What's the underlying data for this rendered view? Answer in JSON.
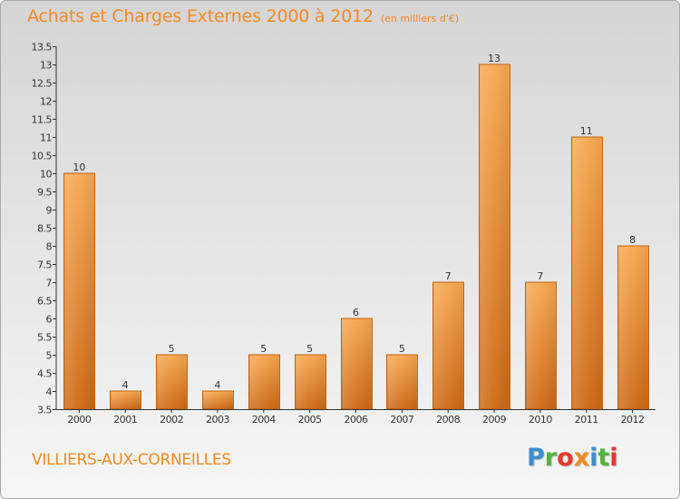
{
  "header": {
    "title": "Achats et Charges Externes 2000 à 2012",
    "unit": "(en milliers d'€)"
  },
  "commune": "VILLIERS-AUX-CORNEILLES",
  "logo": {
    "letters": [
      {
        "char": "P",
        "color": "#3a8fd0"
      },
      {
        "char": "r",
        "color": "#55b13f"
      },
      {
        "char": "o",
        "color": "#e23c2b"
      },
      {
        "char": "x",
        "color": "#f08a23"
      },
      {
        "char": "i",
        "color": "#3a8fd0"
      },
      {
        "char": "t",
        "color": "#55b13f"
      },
      {
        "char": "i",
        "color": "#e23c2b"
      }
    ]
  },
  "colors": {
    "accent": "#f08a23",
    "bar_top": "#f8a851",
    "bar_bottom": "#cc6914",
    "bar_edge": "#c06414"
  },
  "chart_data": {
    "type": "bar",
    "title": "Achats et Charges Externes 2000 à 2012",
    "subtitle": "(en milliers d'€)",
    "categories": [
      "2000",
      "2001",
      "2002",
      "2003",
      "2004",
      "2005",
      "2006",
      "2007",
      "2008",
      "2009",
      "2010",
      "2011",
      "2012"
    ],
    "values": [
      10,
      4,
      5,
      4,
      5,
      5,
      6,
      5,
      7,
      13,
      7,
      11,
      8
    ],
    "data_labels": [
      "10",
      "4",
      "5",
      "4",
      "5",
      "5",
      "6",
      "5",
      "7",
      "13",
      "7",
      "11",
      "8"
    ],
    "ylim": [
      3.5,
      13.5
    ],
    "yticks": [
      3.5,
      4,
      4.5,
      5,
      5.5,
      6,
      6.5,
      7,
      7.5,
      8,
      8.5,
      9,
      9.5,
      10,
      10.5,
      11,
      11.5,
      12,
      12.5,
      13,
      13.5
    ],
    "yticklabels": [
      "3.5",
      "4",
      "4.5",
      "5",
      "5.5",
      "6",
      "6.5",
      "7",
      "7.5",
      "8",
      "8.5",
      "9",
      "9.5",
      "10",
      "10.5",
      "11",
      "11.5",
      "12",
      "12.5",
      "13",
      "13.5"
    ],
    "grid": false,
    "xlabel": "",
    "ylabel": ""
  }
}
